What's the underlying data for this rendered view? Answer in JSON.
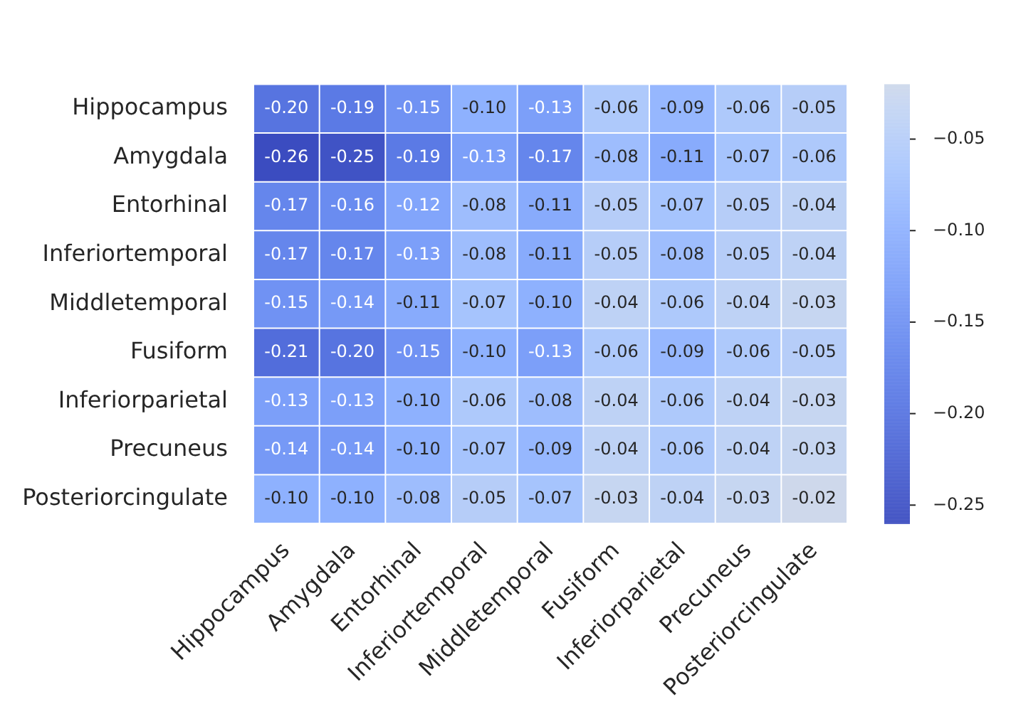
{
  "chart_data": {
    "type": "heatmap",
    "categories": [
      "Hippocampus",
      "Amygdala",
      "Entorhinal",
      "Inferiortemporal",
      "Middletemporal",
      "Fusiform",
      "Inferiorparietal",
      "Precuneus",
      "Posteriorcingulate"
    ],
    "y_categories": [
      "Hippocampus",
      "Amygdala",
      "Entorhinal",
      "Inferiortemporal",
      "Middletemporal",
      "Fusiform",
      "Inferiorparietal",
      "Precuneus",
      "Posteriorcingulate"
    ],
    "cells": [
      [
        -0.2,
        -0.19,
        -0.15,
        -0.1,
        -0.13,
        -0.06,
        -0.09,
        -0.06,
        -0.05
      ],
      [
        -0.26,
        -0.25,
        -0.19,
        -0.13,
        -0.17,
        -0.08,
        -0.11,
        -0.07,
        -0.06
      ],
      [
        -0.17,
        -0.16,
        -0.12,
        -0.08,
        -0.11,
        -0.05,
        -0.07,
        -0.05,
        -0.04
      ],
      [
        -0.17,
        -0.17,
        -0.13,
        -0.08,
        -0.11,
        -0.05,
        -0.08,
        -0.05,
        -0.04
      ],
      [
        -0.15,
        -0.14,
        -0.11,
        -0.07,
        -0.1,
        -0.04,
        -0.06,
        -0.04,
        -0.03
      ],
      [
        -0.21,
        -0.2,
        -0.15,
        -0.1,
        -0.13,
        -0.06,
        -0.09,
        -0.06,
        -0.05
      ],
      [
        -0.13,
        -0.13,
        -0.1,
        -0.06,
        -0.08,
        -0.04,
        -0.06,
        -0.04,
        -0.03
      ],
      [
        -0.14,
        -0.14,
        -0.1,
        -0.07,
        -0.09,
        -0.04,
        -0.06,
        -0.04,
        -0.03
      ],
      [
        -0.1,
        -0.1,
        -0.08,
        -0.05,
        -0.07,
        -0.03,
        -0.04,
        -0.03,
        -0.02
      ]
    ],
    "cell_labels": [
      [
        "-0.20",
        "-0.19",
        "-0.15",
        "-0.10",
        "-0.13",
        "-0.06",
        "-0.09",
        "-0.06",
        "-0.05"
      ],
      [
        "-0.26",
        "-0.25",
        "-0.19",
        "-0.13",
        "-0.17",
        "-0.08",
        "-0.11",
        "-0.07",
        "-0.06"
      ],
      [
        "-0.17",
        "-0.16",
        "-0.12",
        "-0.08",
        "-0.11",
        "-0.05",
        "-0.07",
        "-0.05",
        "-0.04"
      ],
      [
        "-0.17",
        "-0.17",
        "-0.13",
        "-0.08",
        "-0.11",
        "-0.05",
        "-0.08",
        "-0.05",
        "-0.04"
      ],
      [
        "-0.15",
        "-0.14",
        "-0.11",
        "-0.07",
        "-0.10",
        "-0.04",
        "-0.06",
        "-0.04",
        "-0.03"
      ],
      [
        "-0.21",
        "-0.20",
        "-0.15",
        "-0.10",
        "-0.13",
        "-0.06",
        "-0.09",
        "-0.06",
        "-0.05"
      ],
      [
        "-0.13",
        "-0.13",
        "-0.10",
        "-0.06",
        "-0.08",
        "-0.04",
        "-0.06",
        "-0.04",
        "-0.03"
      ],
      [
        "-0.14",
        "-0.14",
        "-0.10",
        "-0.07",
        "-0.09",
        "-0.04",
        "-0.06",
        "-0.04",
        "-0.03"
      ],
      [
        "-0.10",
        "-0.10",
        "-0.08",
        "-0.05",
        "-0.07",
        "-0.03",
        "-0.04",
        "-0.03",
        "-0.02"
      ]
    ],
    "clim": [
      -0.26,
      -0.02
    ],
    "cticks": [
      {
        "value": -0.05,
        "label": "−0.05"
      },
      {
        "value": -0.1,
        "label": "−0.10"
      },
      {
        "value": -0.15,
        "label": "−0.15"
      },
      {
        "value": -0.2,
        "label": "−0.20"
      },
      {
        "value": -0.25,
        "label": "−0.25"
      }
    ],
    "data_labels": true
  }
}
